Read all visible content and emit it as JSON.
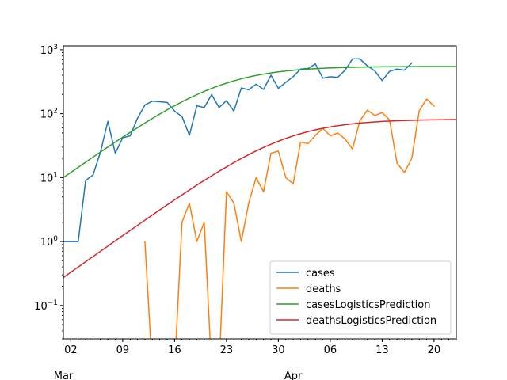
{
  "chart_data": {
    "type": "line",
    "title": "",
    "xlabel": "",
    "ylabel": "",
    "yscale": "log",
    "ylim": [
      0.03,
      1150
    ],
    "xlim": [
      "2020-03-01",
      "2020-04-23"
    ],
    "grid": false,
    "legend_position": "lower-right",
    "x_ticks": [
      {
        "date": "2020-03-02",
        "label": "02"
      },
      {
        "date": "2020-03-09",
        "label": "09"
      },
      {
        "date": "2020-03-16",
        "label": "16"
      },
      {
        "date": "2020-03-23",
        "label": "23"
      },
      {
        "date": "2020-03-30",
        "label": "30"
      },
      {
        "date": "2020-04-06",
        "label": "06"
      },
      {
        "date": "2020-04-13",
        "label": "13"
      },
      {
        "date": "2020-04-20",
        "label": "20"
      }
    ],
    "x_month_labels": [
      {
        "date": "2020-03-01",
        "label": "Mar"
      },
      {
        "date": "2020-04-01",
        "label": "Apr"
      }
    ],
    "y_ticks": [
      {
        "value": 0.1,
        "base": "10",
        "exp": "−1"
      },
      {
        "value": 1,
        "base": "10",
        "exp": "0"
      },
      {
        "value": 10,
        "base": "10",
        "exp": "1"
      },
      {
        "value": 100,
        "base": "10",
        "exp": "2"
      },
      {
        "value": 1000,
        "base": "10",
        "exp": "3"
      }
    ],
    "series": [
      {
        "name": "cases",
        "color": "#1f77b4",
        "start_date": "2020-03-01",
        "values": [
          1,
          1,
          1,
          9,
          11,
          25,
          76,
          24,
          42,
          45,
          85,
          137,
          157,
          154,
          150,
          110,
          90,
          46,
          133,
          125,
          200,
          125,
          160,
          110,
          253,
          237,
          290,
          240,
          400,
          250,
          310,
          380,
          500,
          510,
          600,
          360,
          380,
          370,
          480,
          720,
          720,
          560,
          470,
          330,
          460,
          500,
          480,
          620
        ]
      },
      {
        "name": "deaths",
        "color": "#ff7f0e",
        "start_date": "2020-03-01",
        "values": [
          null,
          null,
          null,
          null,
          null,
          null,
          null,
          null,
          null,
          null,
          null,
          1,
          0,
          0,
          0,
          0,
          2,
          4,
          1,
          2,
          0,
          0,
          6,
          4,
          1,
          4,
          10,
          6,
          24,
          26,
          10,
          8,
          36,
          34,
          46,
          59,
          45,
          50,
          40,
          28,
          78,
          114,
          94,
          104,
          80,
          17,
          12,
          20,
          111,
          170,
          132
        ]
      },
      {
        "name": "casesLogisticsPrediction",
        "color": "#2ca02c",
        "model": "logistic",
        "start_date": "2020-03-01",
        "end_date": "2020-04-23",
        "K": 550,
        "r": 0.19,
        "midpoint_date": "2020-03-22"
      },
      {
        "name": "deathsLogisticsPrediction",
        "color": "#d62728",
        "model": "logistic",
        "start_date": "2020-03-01",
        "end_date": "2020-04-23",
        "K": 82,
        "r": 0.19,
        "midpoint_date": "2020-03-31"
      }
    ]
  }
}
